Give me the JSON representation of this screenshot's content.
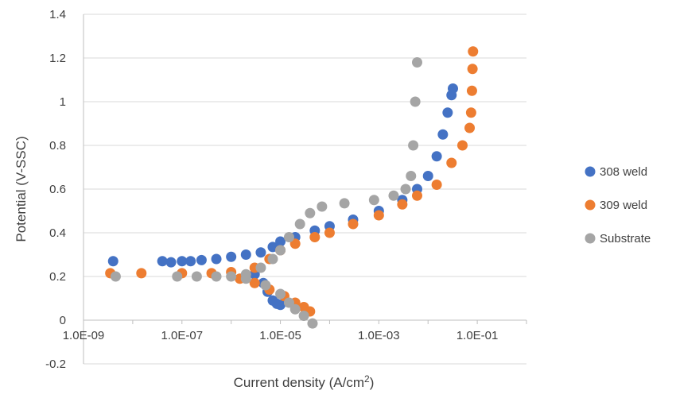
{
  "chart_data": {
    "type": "scatter",
    "title": "",
    "xlabel": "Current density (A/cm2)",
    "ylabel": "Potential (V-SSC)",
    "x_scale": "log",
    "xlim": [
      1e-09,
      1
    ],
    "ylim": [
      -0.2,
      1.4
    ],
    "x_tick_labels": [
      "1.0E-09",
      "1.0E-07",
      "1.0E-05",
      "1.0E-03",
      "1.0E-01"
    ],
    "y_tick_labels": [
      "-0.2",
      "0",
      "0.2",
      "0.4",
      "0.6",
      "0.8",
      "1",
      "1.2",
      "1.4"
    ],
    "grid": "horizontal",
    "legend_position": "right",
    "series": [
      {
        "name": "308 weld",
        "color": "#4472C4",
        "points": [
          [
            4e-09,
            0.27
          ],
          [
            4e-08,
            0.27
          ],
          [
            6e-08,
            0.265
          ],
          [
            1e-07,
            0.27
          ],
          [
            1.5e-07,
            0.27
          ],
          [
            2.5e-07,
            0.275
          ],
          [
            5e-07,
            0.28
          ],
          [
            1e-06,
            0.29
          ],
          [
            2e-06,
            0.3
          ],
          [
            4e-06,
            0.31
          ],
          [
            7e-06,
            0.335
          ],
          [
            1e-05,
            0.36
          ],
          [
            2e-05,
            0.38
          ],
          [
            5e-05,
            0.41
          ],
          [
            0.0001,
            0.43
          ],
          [
            0.0003,
            0.46
          ],
          [
            0.001,
            0.5
          ],
          [
            0.003,
            0.55
          ],
          [
            0.006,
            0.6
          ],
          [
            0.01,
            0.66
          ],
          [
            0.015,
            0.75
          ],
          [
            0.02,
            0.85
          ],
          [
            0.025,
            0.95
          ],
          [
            0.03,
            1.03
          ],
          [
            0.032,
            1.06
          ],
          [
            3e-06,
            0.21
          ],
          [
            4.5e-06,
            0.17
          ],
          [
            5.5e-06,
            0.13
          ],
          [
            7e-06,
            0.09
          ],
          [
            8.5e-06,
            0.075
          ],
          [
            1e-05,
            0.07
          ]
        ]
      },
      {
        "name": "309 weld",
        "color": "#ED7D31",
        "points": [
          [
            3.5e-09,
            0.215
          ],
          [
            1.5e-08,
            0.215
          ],
          [
            1e-07,
            0.215
          ],
          [
            4e-07,
            0.215
          ],
          [
            1e-06,
            0.22
          ],
          [
            3e-06,
            0.24
          ],
          [
            6e-06,
            0.28
          ],
          [
            1e-05,
            0.32
          ],
          [
            2e-05,
            0.35
          ],
          [
            5e-05,
            0.38
          ],
          [
            0.0001,
            0.4
          ],
          [
            0.0003,
            0.44
          ],
          [
            0.001,
            0.48
          ],
          [
            0.003,
            0.53
          ],
          [
            0.006,
            0.57
          ],
          [
            0.015,
            0.62
          ],
          [
            0.03,
            0.72
          ],
          [
            0.05,
            0.8
          ],
          [
            0.07,
            0.88
          ],
          [
            0.075,
            0.95
          ],
          [
            0.078,
            1.05
          ],
          [
            0.08,
            1.15
          ],
          [
            0.082,
            1.23
          ],
          [
            1.5e-06,
            0.19
          ],
          [
            3e-06,
            0.17
          ],
          [
            6e-06,
            0.14
          ],
          [
            1.2e-05,
            0.11
          ],
          [
            2e-05,
            0.08
          ],
          [
            3e-05,
            0.06
          ],
          [
            4e-05,
            0.04
          ]
        ]
      },
      {
        "name": "Substrate",
        "color": "#A5A5A5",
        "points": [
          [
            4.5e-09,
            0.2
          ],
          [
            8e-08,
            0.2
          ],
          [
            2e-07,
            0.2
          ],
          [
            5e-07,
            0.2
          ],
          [
            1e-06,
            0.2
          ],
          [
            2e-06,
            0.21
          ],
          [
            4e-06,
            0.24
          ],
          [
            7e-06,
            0.28
          ],
          [
            1e-05,
            0.32
          ],
          [
            1.5e-05,
            0.38
          ],
          [
            2.5e-05,
            0.44
          ],
          [
            4e-05,
            0.49
          ],
          [
            7e-05,
            0.52
          ],
          [
            0.0002,
            0.535
          ],
          [
            0.0008,
            0.55
          ],
          [
            0.002,
            0.57
          ],
          [
            0.0035,
            0.6
          ],
          [
            0.0045,
            0.66
          ],
          [
            0.005,
            0.8
          ],
          [
            0.0055,
            1.0
          ],
          [
            0.006,
            1.18
          ],
          [
            2e-06,
            0.19
          ],
          [
            5e-06,
            0.16
          ],
          [
            1e-05,
            0.12
          ],
          [
            1.5e-05,
            0.08
          ],
          [
            2e-05,
            0.05
          ],
          [
            3e-05,
            0.02
          ],
          [
            4.5e-05,
            -0.015
          ]
        ]
      }
    ]
  }
}
